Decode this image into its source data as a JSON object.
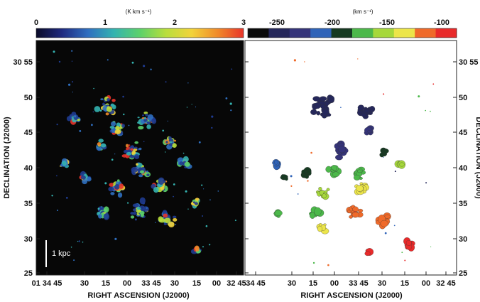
{
  "left_panel": {
    "colorbar": {
      "unit": "(K km s⁻¹)",
      "ticks": [
        "0",
        "1",
        "2",
        "3"
      ],
      "stops": [
        "#0a0a28",
        "#1f2a80",
        "#2f6fc0",
        "#34b3b0",
        "#5cd16a",
        "#b8de3c",
        "#f2d33a",
        "#f08a2a",
        "#e8342a"
      ]
    },
    "y_ticks": [
      "25",
      "30",
      "35",
      "40",
      "45",
      "50",
      "30 55"
    ],
    "x_ticks": [
      "01 34 45",
      "30",
      "15",
      "00",
      "33 45",
      "30",
      "15",
      "00",
      "32 45"
    ],
    "ylabel": "DECLINATION (J2000)",
    "xlabel": "RIGHT ASCENSION (J2000)",
    "scale_bar_label": "1 kpc",
    "background": "#070707"
  },
  "right_panel": {
    "colorbar": {
      "unit": "(km s⁻¹)",
      "ticks": [
        "-250",
        "-200",
        "-150",
        "-100"
      ],
      "blocks": [
        "#0b0b0b",
        "#25275a",
        "#35347a",
        "#2f63b8",
        "#163a22",
        "#4cb84a",
        "#a6d83b",
        "#ece54a",
        "#ef6a2a",
        "#e82a2a"
      ]
    },
    "y_ticks": [
      "25",
      "30",
      "35",
      "40",
      "45",
      "50",
      "30 55"
    ],
    "x_ticks": [
      "34 45",
      "30",
      "15",
      "00",
      "33 45",
      "30",
      "15",
      "00",
      "32 45"
    ],
    "ylabel": "DECLINATION (J2000)",
    "xlabel": "RIGHT ASCENSION (J2000)",
    "background": "#ffffff"
  }
}
